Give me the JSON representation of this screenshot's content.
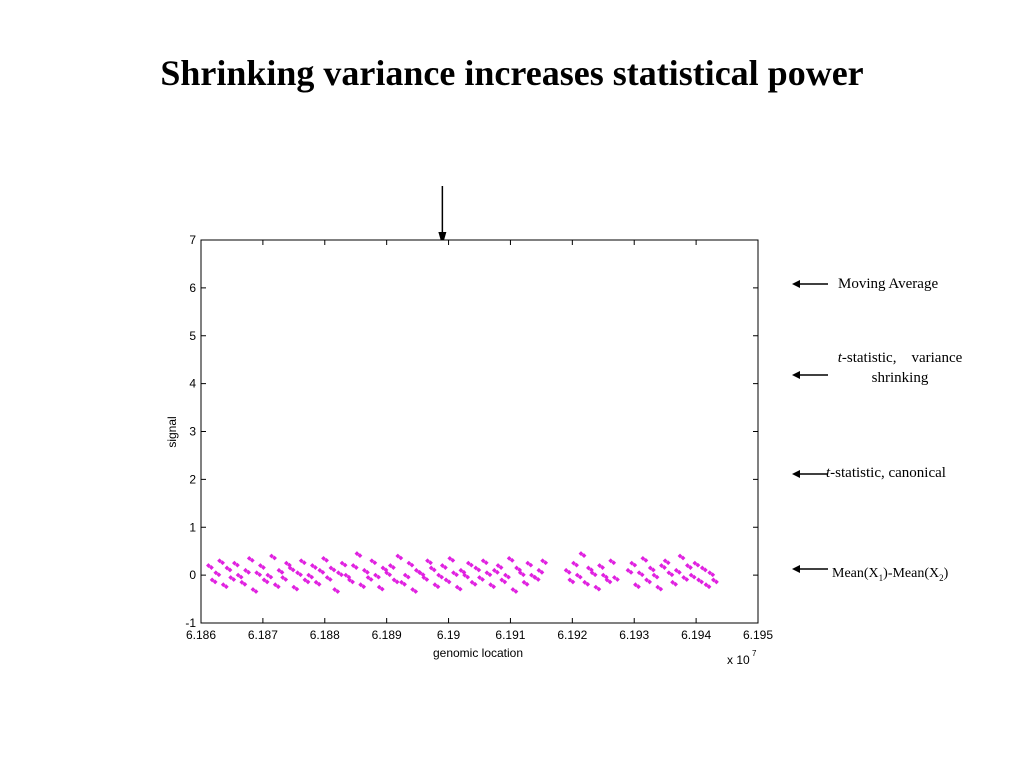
{
  "slide": {
    "title": "Shrinking variance increases statistical power"
  },
  "annotations": {
    "moving_average": "Moving Average",
    "t_shrink_italic": "t",
    "t_shrink_rest": "-statistic,    variance",
    "t_shrink_line2": "shrinking",
    "t_canon_italic": "t",
    "t_canon_rest": "-statistic, canonical",
    "mean_a": "Mean(X",
    "mean_sub1": "1",
    "mean_b": ")-Mean(X",
    "mean_sub2": "2",
    "mean_c": ")"
  },
  "chart_data": {
    "type": "scatter",
    "xlabel": "genomic location",
    "ylabel": "signal",
    "x_multiplier_label": "x 10",
    "x_multiplier_exp": "7",
    "xlim": [
      6.186,
      6.195
    ],
    "ylim": [
      -1,
      7
    ],
    "x_ticks": [
      "6.186",
      "6.187",
      "6.188",
      "6.189",
      "6.19",
      "6.191",
      "6.192",
      "6.193",
      "6.194",
      "6.195"
    ],
    "y_ticks": [
      "-1",
      "0",
      "1",
      "2",
      "3",
      "4",
      "5",
      "6",
      "7"
    ],
    "series_color": "#e020e0",
    "marker_x": 6.1899,
    "series": [
      {
        "x": [
          6.18612,
          6.18618,
          6.18624,
          6.1863,
          6.18636,
          6.18642,
          6.18648,
          6.18654,
          6.1866,
          6.18666,
          6.18672,
          6.18678,
          6.18684,
          6.1869,
          6.18696,
          6.18702,
          6.18708,
          6.18714,
          6.1872,
          6.18726,
          6.18732,
          6.18738,
          6.18744,
          6.1875,
          6.18756,
          6.18762,
          6.18768,
          6.18774,
          6.1878,
          6.18786,
          6.18792,
          6.18798,
          6.18804,
          6.1881,
          6.18816,
          6.18822,
          6.18828,
          6.18834,
          6.1884,
          6.18846,
          6.18852,
          6.18858,
          6.18864,
          6.1887,
          6.18876,
          6.18882,
          6.18888,
          6.18894,
          6.189,
          6.18906,
          6.18912,
          6.18918,
          6.18924,
          6.1893,
          6.18936,
          6.18942,
          6.18948,
          6.18954,
          6.1896,
          6.18966,
          6.18972,
          6.18978,
          6.18984,
          6.1899,
          6.18996,
          6.19002,
          6.19008,
          6.19014,
          6.1902,
          6.19026,
          6.19032,
          6.19038,
          6.19044,
          6.1905,
          6.19056,
          6.19062,
          6.19068,
          6.19074,
          6.1908,
          6.19086,
          6.19092,
          6.19098,
          6.19104,
          6.1911,
          6.19116,
          6.19122,
          6.19128,
          6.19134,
          6.1914,
          6.19146,
          6.19152,
          6.1919,
          6.19196,
          6.19202,
          6.19208,
          6.19214,
          6.1922,
          6.19226,
          6.19232,
          6.19238,
          6.19244,
          6.1925,
          6.19256,
          6.19262,
          6.19268,
          6.1929,
          6.19296,
          6.19302,
          6.19308,
          6.19314,
          6.1932,
          6.19326,
          6.19332,
          6.19338,
          6.19344,
          6.1935,
          6.19356,
          6.19362,
          6.19368,
          6.19374,
          6.1938,
          6.19386,
          6.19392,
          6.19398,
          6.19404,
          6.1941,
          6.19416,
          6.19422,
          6.19428
        ],
        "y": [
          0.2,
          -0.1,
          0.05,
          0.3,
          -0.2,
          0.15,
          -0.05,
          0.25,
          0.0,
          -0.15,
          0.1,
          0.35,
          -0.3,
          0.05,
          0.2,
          -0.1,
          0.0,
          0.4,
          -0.2,
          0.1,
          -0.05,
          0.25,
          0.15,
          -0.25,
          0.05,
          0.3,
          -0.1,
          0.0,
          0.2,
          -0.15,
          0.1,
          0.35,
          -0.05,
          0.15,
          -0.3,
          0.05,
          0.25,
          0.0,
          -0.1,
          0.2,
          0.45,
          -0.2,
          0.1,
          -0.05,
          0.3,
          0.0,
          -0.25,
          0.15,
          0.05,
          0.2,
          -0.1,
          0.4,
          -0.15,
          0.0,
          0.25,
          -0.3,
          0.1,
          0.05,
          -0.05,
          0.3,
          0.15,
          -0.2,
          0.0,
          0.2,
          -0.1,
          0.35,
          0.05,
          -0.25,
          0.1,
          0.0,
          0.25,
          -0.15,
          0.15,
          -0.05,
          0.3,
          0.05,
          -0.2,
          0.1,
          0.2,
          -0.1,
          0.0,
          0.35,
          -0.3,
          0.15,
          0.05,
          -0.15,
          0.25,
          0.0,
          -0.05,
          0.1,
          0.3,
          0.1,
          -0.1,
          0.25,
          0.0,
          0.45,
          -0.15,
          0.15,
          0.05,
          -0.25,
          0.2,
          0.0,
          -0.1,
          0.3,
          -0.05,
          0.1,
          0.25,
          -0.2,
          0.05,
          0.35,
          -0.1,
          0.15,
          0.0,
          -0.25,
          0.2,
          0.3,
          0.05,
          -0.15,
          0.1,
          0.4,
          -0.05,
          0.2,
          0.0,
          0.25,
          -0.1,
          0.15,
          -0.2,
          0.05,
          -0.1
        ]
      }
    ]
  }
}
